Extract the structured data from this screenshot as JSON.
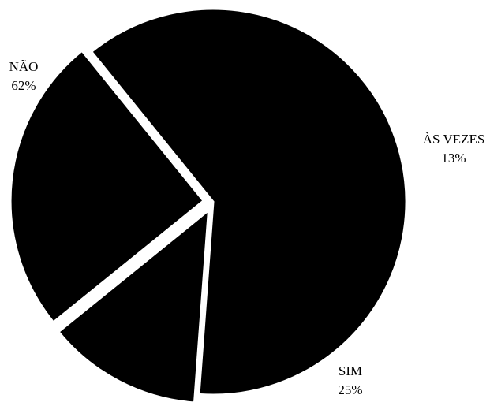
{
  "chart_data": {
    "type": "pie",
    "title": "",
    "slices": [
      {
        "label": "NÃO",
        "value": 62,
        "value_label": "62%"
      },
      {
        "label": "ÀS VEZES",
        "value": 13,
        "value_label": "13%"
      },
      {
        "label": "SIM",
        "value": 25,
        "value_label": "25%"
      }
    ],
    "slice_color": "#000000",
    "separator_color": "#ffffff",
    "exploded": true
  }
}
